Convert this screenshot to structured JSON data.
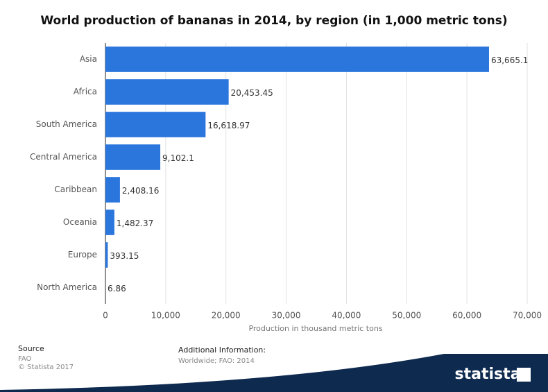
{
  "chart_data": {
    "type": "bar",
    "orientation": "horizontal",
    "title": "World production of bananas in 2014, by region (in 1,000 metric tons)",
    "categories": [
      "Asia",
      "Africa",
      "South America",
      "Central America",
      "Caribbean",
      "Oceania",
      "Europe",
      "North America"
    ],
    "values": [
      63665.1,
      20453.45,
      16618.97,
      9102.1,
      2408.16,
      1482.37,
      393.15,
      6.86
    ],
    "value_labels": [
      "63,665.1",
      "20,453.45",
      "16,618.97",
      "9,102.1",
      "2,408.16",
      "1,482.37",
      "393.15",
      "6.86"
    ],
    "color": "#2a76dd",
    "xlabel": "Production in thousand metric tons",
    "xlim": [
      0,
      70000
    ],
    "xticks": [
      0,
      {
        "value": 10000,
        "label": "10,000"
      },
      {
        "value": 20000,
        "label": "20,000"
      },
      {
        "value": 30000,
        "label": "30,000"
      },
      {
        "value": 40000,
        "label": "40,000"
      },
      {
        "value": 50000,
        "label": "50,000"
      },
      {
        "value": 60000,
        "label": "60,000"
      },
      {
        "value": 70000,
        "label": "70,000"
      }
    ],
    "grid": true
  },
  "footer": {
    "source_heading": "Source",
    "source": "FAO",
    "copyright": "© Statista 2017",
    "info_heading": "Additional Information:",
    "info": "Worldwide; FAO: 2014",
    "brand": "statista"
  }
}
